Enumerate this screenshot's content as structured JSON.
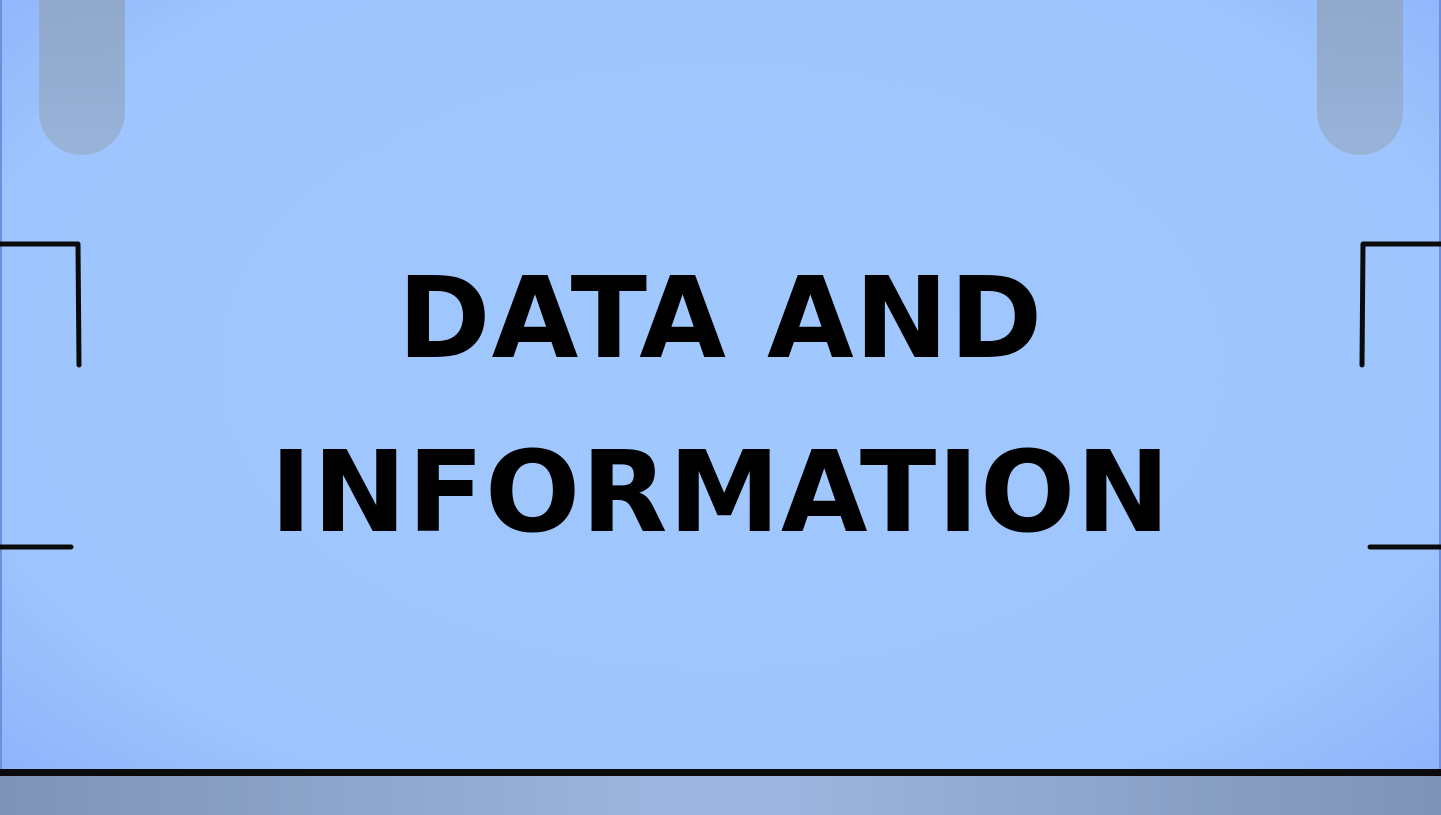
{
  "slide": {
    "title_line_1": "DATA AND",
    "title_line_2": "INFORMATION"
  },
  "colors": {
    "background": "#9ec5fd",
    "background_edge": "#7f9ff8",
    "bottom_band": "#9bb5de",
    "bottom_rule": "#0b0b0b",
    "tab": "#98b2d8",
    "bracket": "#0b0b0b",
    "text": "#000000"
  }
}
